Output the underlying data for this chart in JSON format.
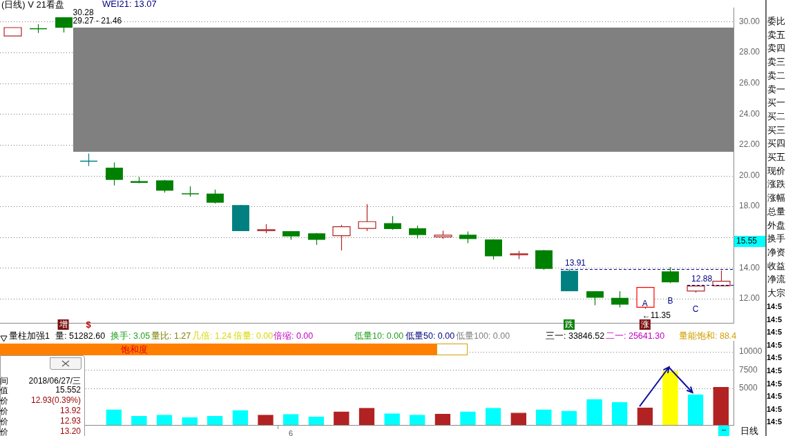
{
  "chart_data": [
    {
      "type": "candlestick",
      "title": "(日线) V 21看盘",
      "categories": [
        null,
        null,
        null,
        null,
        null,
        null,
        null,
        null,
        null,
        null,
        null,
        null,
        null,
        null,
        null,
        null,
        null,
        null,
        null,
        null,
        null,
        null,
        null,
        null,
        null,
        null,
        null,
        null,
        null
      ],
      "ohlc": [
        [
          29.07,
          29.61,
          29.07,
          29.61
        ],
        [
          29.57,
          29.83,
          29.26,
          29.55
        ],
        [
          30.28,
          30.28,
          29.29,
          29.6
        ],
        [
          20.97,
          21.43,
          20.62,
          20.92
        ],
        [
          20.51,
          20.85,
          19.36,
          19.72
        ],
        [
          19.64,
          19.91,
          19.5,
          19.53
        ],
        [
          19.69,
          19.72,
          18.89,
          19.02
        ],
        [
          18.85,
          19.3,
          18.63,
          18.82
        ],
        [
          18.83,
          19.09,
          18.18,
          18.24
        ],
        [
          18.09,
          18.09,
          16.39,
          16.39
        ],
        [
          16.47,
          16.85,
          16.26,
          16.49
        ],
        [
          16.39,
          16.39,
          15.83,
          16.05
        ],
        [
          16.25,
          16.27,
          15.5,
          15.83
        ],
        [
          16.1,
          16.8,
          15.14,
          16.68
        ],
        [
          16.57,
          18.14,
          16.4,
          17.01
        ],
        [
          16.91,
          17.37,
          16.48,
          16.53
        ],
        [
          16.58,
          16.75,
          15.91,
          16.14
        ],
        [
          16.02,
          16.42,
          15.89,
          16.13
        ],
        [
          16.16,
          16.37,
          15.61,
          15.88
        ],
        [
          15.85,
          15.87,
          14.55,
          14.76
        ],
        [
          14.9,
          15.11,
          14.58,
          14.92
        ],
        [
          15.15,
          15.17,
          13.88,
          13.94
        ],
        [
          13.82,
          13.91,
          12.49,
          12.49
        ],
        [
          12.49,
          12.49,
          11.58,
          12.07
        ],
        [
          12.06,
          12.49,
          11.44,
          11.62
        ],
        [
          11.45,
          12.74,
          11.35,
          12.74
        ],
        [
          13.78,
          14.06,
          13.02,
          13.07
        ],
        [
          12.5,
          12.88,
          12.4,
          12.83
        ],
        [
          12.84,
          13.84,
          12.84,
          13.14
        ]
      ],
      "colors": [
        "#b22222",
        "#008000",
        "#008000",
        "#008080",
        "#008000",
        "#008000",
        "#008000",
        "#008000",
        "#008000",
        "#008080",
        "#b22222",
        "#008000",
        "#008000",
        "#b22222",
        "#b22222",
        "#008000",
        "#008000",
        "#b22222",
        "#008000",
        "#008000",
        "#b22222",
        "#008000",
        "#008080",
        "#008000",
        "#008000",
        "#ff0000",
        "#008000",
        "#b22222",
        "#b22222"
      ],
      "ylim": [
        10.4,
        30.9
      ],
      "yticks": [
        {
          "value": 12,
          "label": "12.00"
        },
        {
          "value": 14,
          "label": "14.00"
        },
        {
          "value": 16,
          "label": null
        },
        {
          "value": 18,
          "label": "18.00"
        },
        {
          "value": 20,
          "label": "20.00"
        },
        {
          "value": 22,
          "label": "22.00"
        },
        {
          "value": 24,
          "label": "24.00"
        },
        {
          "value": 26,
          "label": "26.00"
        },
        {
          "value": 28,
          "label": "28.00"
        },
        {
          "value": 30,
          "label": "30.00"
        }
      ],
      "grid": "y",
      "ref_lines": [
        {
          "axis": "y",
          "value": 13.91,
          "label": "13.91",
          "color": "#000080",
          "line_style": "dashed"
        },
        {
          "axis": "y",
          "value": 12.88,
          "label": "12.88",
          "color": "#000080",
          "line_style": "dashed"
        }
      ],
      "annotations": [
        "WEI21: 13.07",
        "30.28",
        "29.27 - 21.46",
        "←11.35",
        "A",
        "B",
        "C",
        "增",
        "$",
        "跌",
        "涨",
        "15.55"
      ]
    },
    {
      "type": "bar",
      "title": "量柱加强1",
      "categories": [
        null,
        null,
        null,
        null,
        null,
        null,
        null,
        null,
        null,
        null,
        null,
        "6",
        null,
        null,
        null,
        null,
        null,
        null,
        null,
        null,
        null,
        null,
        null,
        null,
        null,
        null,
        null,
        null,
        null
      ],
      "values": [
        null,
        null,
        null,
        null,
        2100,
        1200,
        1350,
        1000,
        1200,
        2000,
        1350,
        1450,
        1100,
        1800,
        2300,
        1550,
        1350,
        1500,
        1800,
        2300,
        1650,
        2100,
        1900,
        3500,
        3100,
        2350,
        7350,
        4150,
        5150
      ],
      "colors": [
        null,
        null,
        null,
        null,
        "#00ffff",
        "#00ffff",
        "#00ffff",
        "#00ffff",
        "#00ffff",
        "#00ffff",
        "#b22222",
        "#00ffff",
        "#00ffff",
        "#b22222",
        "#b22222",
        "#00ffff",
        "#00ffff",
        "#b22222",
        "#00ffff",
        "#00ffff",
        "#b22222",
        "#00ffff",
        "#00ffff",
        "#00ffff",
        "#00ffff",
        "#b22222",
        "#ffff00",
        "#00ffff",
        "#b22222"
      ],
      "ylim": [
        0,
        11500
      ],
      "yticks": [
        5000,
        7500,
        10000
      ],
      "grid": "y",
      "annotations": [
        "量: 51282.60",
        "换手: 3.05",
        "量比: 1.27",
        "几倍: 1.24",
        "倍量: 0.00",
        "倍缩: 0.00",
        "低量10: 0.00",
        "低量50: 0.00",
        "低量100: 0.00",
        "三一: 33846.52",
        "二一: 25641.30",
        "量能饱和: 88.4",
        "饱和度"
      ]
    },
    {
      "type": "other",
      "annotations": [
        "间",
        "值",
        "价",
        "价",
        "价",
        "价",
        "2018/06/27/三",
        "15.552",
        "12.93(0.39%)",
        "13.92",
        "12.93",
        "13.20",
        "委比",
        "卖五",
        "卖四",
        "卖三",
        "卖二",
        "卖一",
        "买一",
        "买二",
        "买三",
        "买四",
        "买五",
        "现价",
        "涨跌",
        "涨幅",
        "总量",
        "外盘",
        "换手",
        "净资",
        "收益",
        "净流",
        "大宗",
        "14:5",
        "14:5",
        "14:5",
        "14:5",
        "14:5",
        "14:5",
        "14:5",
        "14:5",
        "14:5",
        "14:5",
        "--",
        "日线"
      ]
    }
  ]
}
